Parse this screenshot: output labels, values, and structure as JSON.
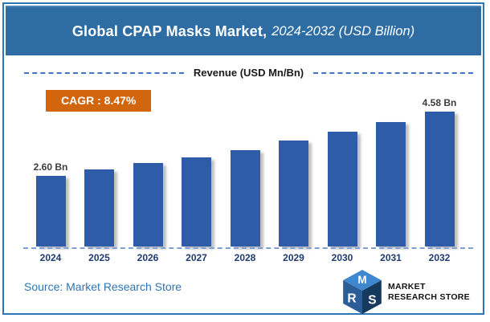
{
  "title": {
    "main": "Global CPAP Masks Market,",
    "sub": "2024-2032 (USD Billion)"
  },
  "chart_header": "Revenue (USD Mn/Bn)",
  "cagr_badge": "CAGR : 8.47%",
  "source_text": "Source: Market Research Store",
  "logo": {
    "name": "market-research-store-logo",
    "letters": [
      "M",
      "R",
      "S"
    ],
    "text_line1": "MARKET",
    "text_line2": "RESEARCH STORE"
  },
  "colors": {
    "frame_border": "#2E75B6",
    "title_bar": "#2E6DA4",
    "bar": "#2F5CA8",
    "cagr_badge": "#D2660E",
    "header_dash": "#4472C4",
    "axis_dash": "#7D9FD6",
    "year_label": "#1E3A6E",
    "source_text": "#2E74B5"
  },
  "chart_data": {
    "type": "bar",
    "title": "Global CPAP Masks Market, 2024-2032 (USD Billion)",
    "ylabel": "Revenue (USD Mn/Bn)",
    "unit": "USD Billion",
    "cagr": "8.47%",
    "categories": [
      "2024",
      "2025",
      "2026",
      "2027",
      "2028",
      "2029",
      "2030",
      "2031",
      "2032"
    ],
    "values": [
      2.6,
      2.8,
      3.0,
      3.17,
      3.4,
      3.69,
      3.96,
      4.26,
      4.58
    ],
    "bar_labels": [
      "2.60 Bn",
      "",
      "",
      "",
      "",
      "",
      "",
      "",
      "4.58 Bn"
    ],
    "labeled_points": {
      "2024": "2.60 Bn",
      "2032": "4.58 Bn"
    },
    "bar_color": "#2F5CA8",
    "grid": false,
    "legend": "none",
    "y_axis_visible": false
  }
}
